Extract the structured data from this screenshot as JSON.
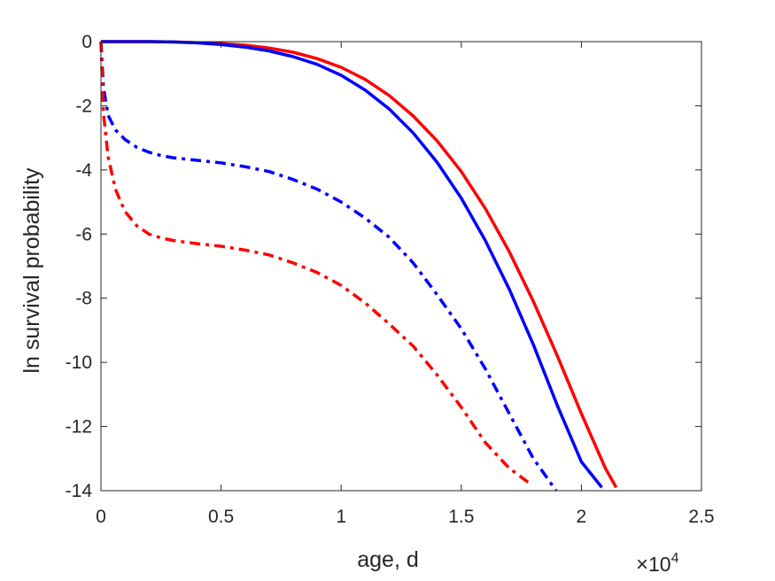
{
  "chart_data": {
    "type": "line",
    "title": "",
    "xlabel": "age, d",
    "ylabel": "ln survival probability",
    "x_multiplier": {
      "base": "10",
      "exponent": "4"
    },
    "xlim": [
      0,
      25000
    ],
    "ylim": [
      -14,
      0
    ],
    "x_ticks": [
      0,
      5000,
      10000,
      15000,
      20000,
      25000
    ],
    "x_tick_labels": [
      "0",
      "0.5",
      "1",
      "1.5",
      "2",
      "2.5"
    ],
    "y_ticks": [
      0,
      -2,
      -4,
      -6,
      -8,
      -10,
      -12,
      -14
    ],
    "y_tick_labels": [
      "0",
      "-2",
      "-4",
      "-6",
      "-8",
      "-10",
      "-12",
      "-14"
    ],
    "grid": false,
    "legend": "none",
    "series": [
      {
        "color": "#ff0000",
        "style": "solid",
        "x": [
          0,
          1000,
          2000,
          3000,
          4000,
          5000,
          6000,
          7000,
          8000,
          9000,
          10000,
          11000,
          12000,
          13000,
          14000,
          15000,
          16000,
          17000,
          18000,
          19000,
          20000,
          21000,
          21450
        ],
        "y": [
          0,
          0,
          0,
          -0.01,
          -0.03,
          -0.06,
          -0.11,
          -0.2,
          -0.33,
          -0.53,
          -0.8,
          -1.18,
          -1.68,
          -2.32,
          -3.1,
          -4.05,
          -5.2,
          -6.55,
          -8.1,
          -9.8,
          -11.6,
          -13.3,
          -13.9
        ]
      },
      {
        "color": "#0000ff",
        "style": "solid",
        "x": [
          0,
          1000,
          2000,
          3000,
          4000,
          5000,
          6000,
          7000,
          8000,
          9000,
          10000,
          11000,
          12000,
          13000,
          14000,
          15000,
          16000,
          17000,
          18000,
          19000,
          20000,
          20850
        ],
        "y": [
          0,
          0,
          0,
          -0.01,
          -0.04,
          -0.09,
          -0.17,
          -0.29,
          -0.47,
          -0.71,
          -1.05,
          -1.51,
          -2.1,
          -2.85,
          -3.77,
          -4.88,
          -6.2,
          -7.72,
          -9.45,
          -11.35,
          -13.1,
          -13.9
        ]
      },
      {
        "color": "#0000ff",
        "style": "dashdot",
        "x": [
          0,
          100,
          300,
          600,
          1000,
          1500,
          2000,
          2500,
          3000,
          4000,
          5000,
          6000,
          7000,
          8000,
          9000,
          10000,
          11000,
          12000,
          13000,
          14000,
          15000,
          16000,
          17000,
          18000,
          18950
        ],
        "y": [
          0,
          -1.4,
          -2.3,
          -2.75,
          -3.05,
          -3.3,
          -3.45,
          -3.55,
          -3.62,
          -3.7,
          -3.78,
          -3.9,
          -4.05,
          -4.3,
          -4.6,
          -5.0,
          -5.5,
          -6.1,
          -6.9,
          -7.9,
          -8.95,
          -10.2,
          -11.6,
          -13.0,
          -14.0
        ]
      },
      {
        "color": "#ff0000",
        "style": "dashdot",
        "x": [
          0,
          100,
          300,
          600,
          1000,
          1500,
          2000,
          2500,
          3000,
          4000,
          5000,
          6000,
          7000,
          8000,
          9000,
          10000,
          11000,
          12000,
          13000,
          14000,
          15000,
          16000,
          17000,
          17900
        ],
        "y": [
          0,
          -2.2,
          -3.6,
          -4.6,
          -5.3,
          -5.75,
          -6.0,
          -6.12,
          -6.2,
          -6.3,
          -6.38,
          -6.5,
          -6.65,
          -6.9,
          -7.2,
          -7.6,
          -8.15,
          -8.8,
          -9.5,
          -10.4,
          -11.4,
          -12.5,
          -13.3,
          -13.8
        ]
      }
    ]
  }
}
